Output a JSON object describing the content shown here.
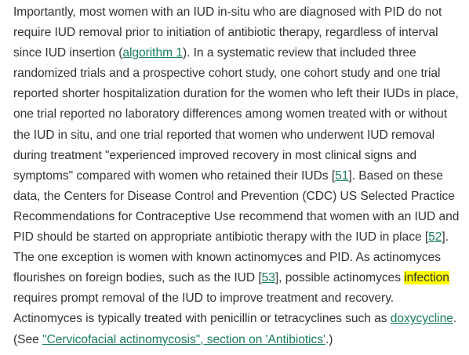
{
  "paragraph": {
    "s1_before": "Importantly, most women with an IUD in-situ who are diagnosed with PID do not require IUD removal prior to initiation of antibiotic therapy, regardless of interval since IUD insertion (",
    "link_algorithm": "algorithm 1",
    "s1_after": "). In a systematic review that included three randomized trials and a prospective cohort study, one cohort study and one trial reported shorter hospitalization duration for the women who left their IUDs in place, one trial reported no laboratory differences among women treated with or without the IUD in situ, and one trial reported that women who underwent IUD removal during treatment \"experienced improved recovery in most clinical signs and symptoms\" compared with women who retained their IUDs [",
    "ref_51": "51",
    "s2": "]. Based on these data, the Centers for Disease Control and Prevention (CDC) US Selected Practice Recommendations for Contraceptive Use recommend that women with an IUD and PID should be started on appropriate antibiotic therapy with the IUD in place [",
    "ref_52": "52",
    "s3": "]. The one exception is women with known actinomyces and PID. As actinomyces flourishes on foreign bodies, such as the IUD [",
    "ref_53": "53",
    "s4": "], possible actinomyces ",
    "highlight": "infection",
    "s5": " requires prompt removal of the IUD to improve treatment and recovery. Actinomyces is typically treated with penicillin or tetracyclines such as ",
    "link_doxycycline": "doxycycline",
    "s6": ". (See ",
    "link_see": "\"Cervicofacial actinomycosis\", section on 'Antibiotics'",
    "s7": ".)"
  },
  "colors": {
    "text": "#333333",
    "link": "#1a7f5a",
    "highlight": "#ffff00"
  }
}
